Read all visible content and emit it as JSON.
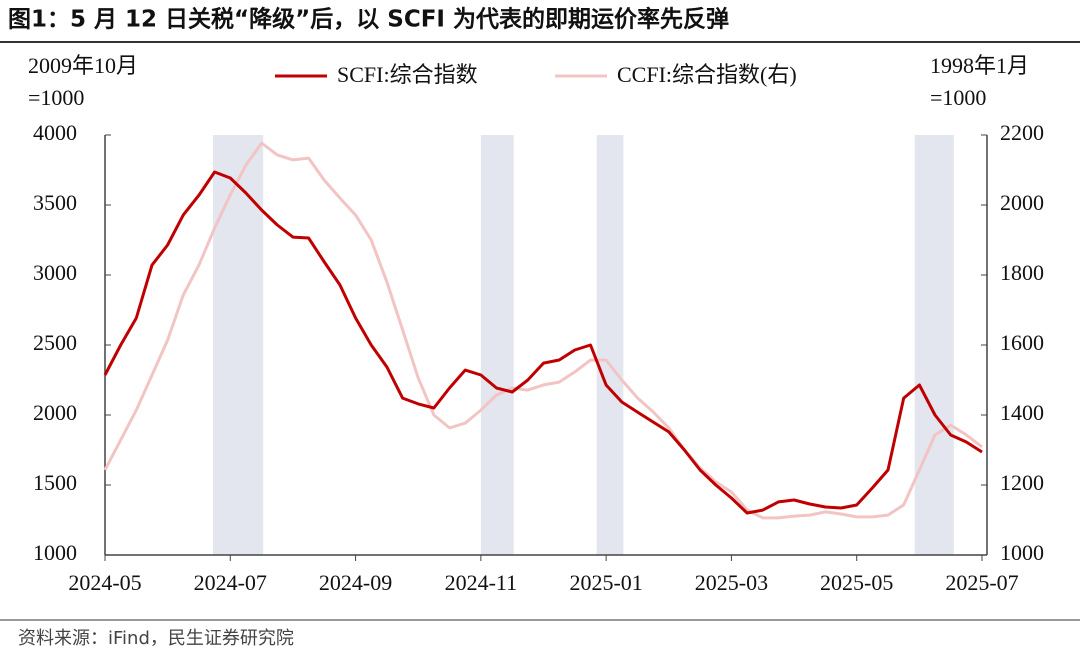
{
  "chart_data": {
    "type": "line",
    "title": "图1：5 月 12 日关税“降级”后，以 SCFI 为代表的即期运价率先反弹",
    "source": "资料来源：iFind，民生证券研究院",
    "y_label": [
      "2009年10月",
      "=1000"
    ],
    "y2_label": [
      "1998年1月",
      "=1000"
    ],
    "categories": [
      "2024-05",
      null,
      null,
      null,
      null,
      null,
      null,
      null,
      "2024-07",
      null,
      null,
      null,
      null,
      null,
      null,
      null,
      "2024-09",
      null,
      null,
      null,
      null,
      null,
      null,
      null,
      "2024-11",
      null,
      null,
      null,
      null,
      null,
      null,
      null,
      "2025-01",
      null,
      null,
      null,
      null,
      null,
      null,
      null,
      "2025-03",
      null,
      null,
      null,
      null,
      null,
      null,
      null,
      "2025-05",
      null,
      null,
      null,
      null,
      null,
      null,
      null,
      "2025-07"
    ],
    "ylim": [
      1000,
      4000
    ],
    "yticks": [
      1000,
      1500,
      2000,
      2500,
      3000,
      3500,
      4000
    ],
    "y2lim": [
      1000,
      2200
    ],
    "y2ticks": [
      1000,
      1200,
      1400,
      1600,
      1800,
      2000,
      2200
    ],
    "highlight_spans": [
      [
        6.9,
        10.1
      ],
      [
        24,
        26.1
      ],
      [
        31.4,
        33.1
      ],
      [
        51.7,
        54.2
      ]
    ],
    "highlight_color": "#e3e6ee",
    "series": [
      {
        "name": "SCFI:综合指数",
        "color": "#c00000",
        "values": [
          2286,
          2500,
          2693,
          3071,
          3214,
          3429,
          3571,
          3736,
          3693,
          3586,
          3464,
          3357,
          3271,
          3264,
          3093,
          2929,
          2693,
          2500,
          2343,
          2121,
          2079,
          2050,
          2193,
          2321,
          2286,
          2193,
          2164,
          2250,
          2371,
          2393,
          2464,
          2500,
          2214,
          2093,
          2021,
          1950,
          1879,
          1750,
          1607,
          1500,
          1407,
          1300,
          1321,
          1379,
          1393,
          1364,
          1343,
          1336,
          1357,
          1479,
          1607,
          2121,
          2214,
          2000,
          1857,
          1807,
          1736
        ]
      },
      {
        "name": "CCFI:综合指数(右)",
        "color": "#f2c4c4",
        "axis": "y2",
        "values": [
          1243,
          1329,
          1414,
          1514,
          1614,
          1743,
          1829,
          1934,
          2029,
          2114,
          2177,
          2143,
          2129,
          2134,
          2071,
          2020,
          1971,
          1900,
          1780,
          1643,
          1506,
          1400,
          1363,
          1377,
          1414,
          1457,
          1477,
          1471,
          1486,
          1494,
          1523,
          1557,
          1557,
          1500,
          1449,
          1409,
          1363,
          1300,
          1249,
          1209,
          1180,
          1129,
          1106,
          1106,
          1111,
          1114,
          1123,
          1117,
          1109,
          1109,
          1114,
          1143,
          1243,
          1343,
          1371,
          1343,
          1309
        ]
      }
    ]
  }
}
